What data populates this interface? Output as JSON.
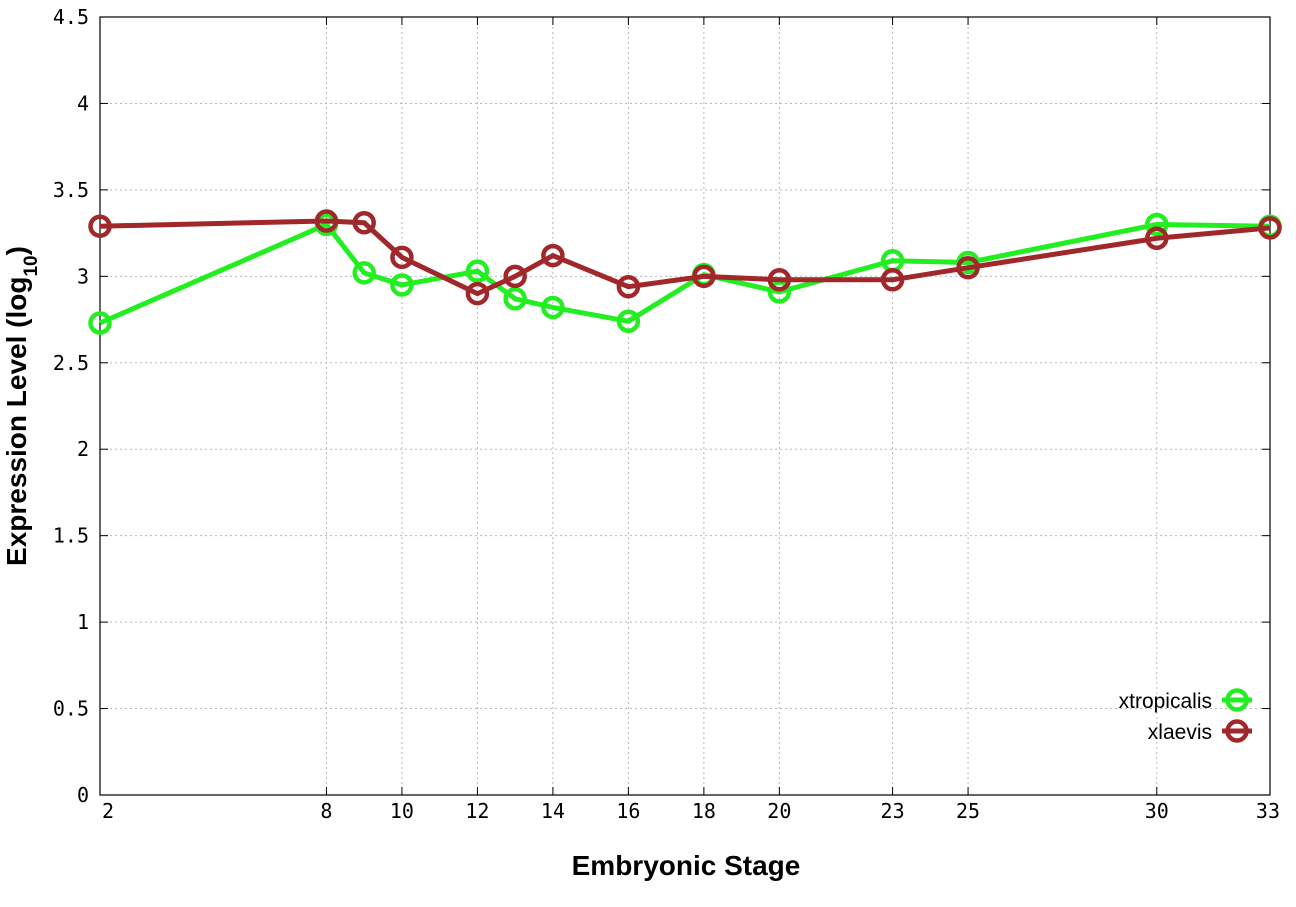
{
  "chart_data": {
    "type": "line",
    "xlabel": "Embryonic Stage",
    "ylabel_main": "Expression Level (log",
    "ylabel_sub": "10",
    "ylabel_close": ")",
    "xlim": [
      2,
      33
    ],
    "ylim": [
      0,
      4.5
    ],
    "x_ticks": [
      2,
      8,
      10,
      12,
      14,
      16,
      18,
      20,
      23,
      25,
      30,
      33
    ],
    "x_tick_labels": [
      "2",
      "8",
      "10",
      "12",
      "14",
      "16",
      "18",
      "20",
      "23",
      "25",
      "30",
      "33"
    ],
    "y_ticks": [
      0,
      0.5,
      1,
      1.5,
      2,
      2.5,
      3,
      3.5,
      4,
      4.5
    ],
    "y_tick_labels": [
      "0",
      "0.5",
      "1",
      "1.5",
      "2",
      "2.5",
      "3",
      "3.5",
      "4",
      "4.5"
    ],
    "grid": true,
    "legend_position": "bottom-right",
    "series": [
      {
        "name": "xtropicalis",
        "color": "#22ee22",
        "x": [
          2,
          8,
          9,
          10,
          12,
          13,
          14,
          16,
          18,
          20,
          23,
          25,
          30,
          33
        ],
        "y": [
          2.73,
          3.3,
          3.02,
          2.95,
          3.03,
          2.87,
          2.82,
          2.74,
          3.01,
          2.91,
          3.09,
          3.08,
          3.3,
          3.29
        ]
      },
      {
        "name": "xlaevis",
        "color": "#a0282a",
        "x": [
          2,
          8,
          9,
          10,
          12,
          13,
          14,
          16,
          18,
          20,
          23,
          25,
          30,
          33
        ],
        "y": [
          3.29,
          3.32,
          3.31,
          3.11,
          2.9,
          3.0,
          3.12,
          2.94,
          3.0,
          2.98,
          2.98,
          3.05,
          3.22,
          3.28
        ]
      }
    ]
  }
}
